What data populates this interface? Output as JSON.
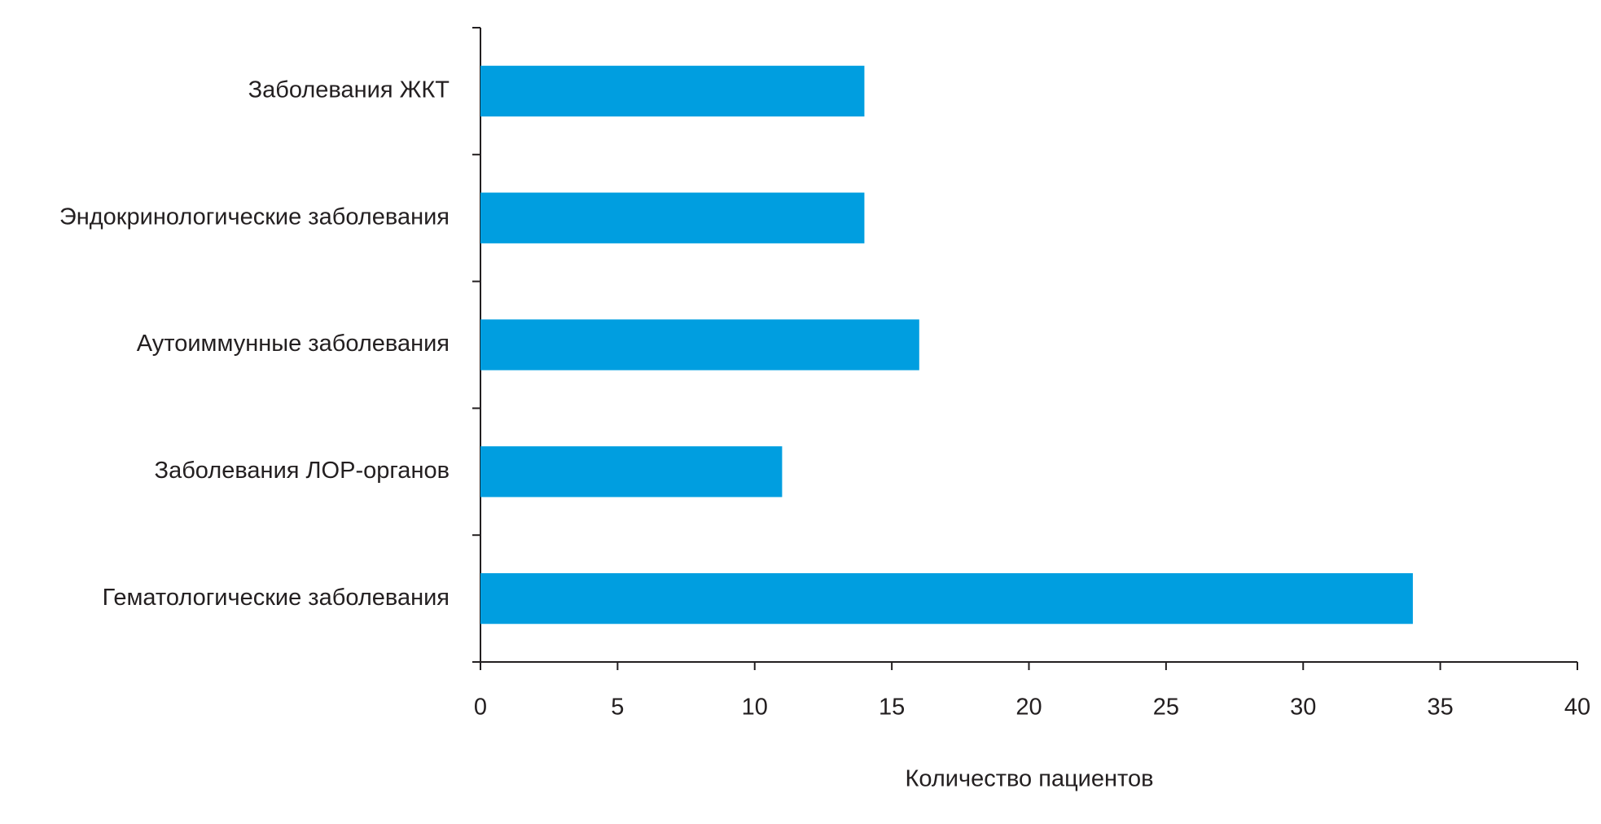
{
  "chart_data": {
    "type": "barh",
    "categories": [
      "Заболевания ЖКТ",
      "Эндокринологические заболевания",
      "Аутоиммунные заболевания",
      "Заболевания ЛОР-органов",
      "Гематологические заболевания"
    ],
    "values": [
      14,
      14,
      16,
      11,
      34
    ],
    "color": "#009ee0",
    "xlim": [
      0,
      40
    ],
    "xticks": [
      0,
      5,
      10,
      15,
      20,
      25,
      30,
      35,
      40
    ],
    "x_label": "Количество пациентов"
  }
}
